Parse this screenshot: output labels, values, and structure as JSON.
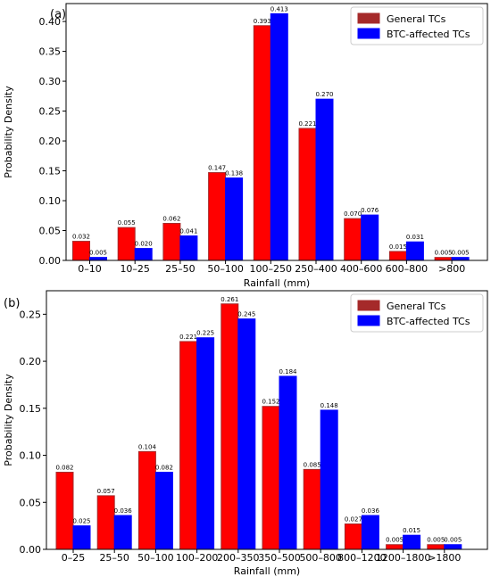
{
  "chart_data": [
    {
      "type": "bar",
      "panel_label": "(a)",
      "categories": [
        "0–10",
        "10–25",
        "25–50",
        "50–100",
        "100–250",
        "250–400",
        "400–600",
        "600–800",
        ">800"
      ],
      "series": [
        {
          "name": "General TCs",
          "values": [
            0.032,
            0.055,
            0.062,
            0.147,
            0.393,
            0.221,
            0.07,
            0.015,
            0.005
          ],
          "labels": [
            "0.032",
            "0.055",
            "0.062",
            "0.147",
            "0.393",
            "0.221",
            "0.070",
            "0.015",
            "0.005"
          ],
          "color": "#ff0000",
          "edge": "#a52a2a"
        },
        {
          "name": "BTC-affected TCs",
          "values": [
            0.005,
            0.02,
            0.041,
            0.138,
            0.413,
            0.27,
            0.076,
            0.031,
            0.005
          ],
          "labels": [
            "0.005",
            "0.020",
            "0.041",
            "0.138",
            "0.413",
            "0.270",
            "0.076",
            "0.031",
            "0.005"
          ],
          "color": "#0000ff",
          "edge": "#0000ff"
        }
      ],
      "xlabel": "Rainfall (mm)",
      "ylabel": "Probability Density",
      "ylim": [
        0,
        0.43
      ],
      "yticks": [
        0.0,
        0.05,
        0.1,
        0.15,
        0.2,
        0.25,
        0.3,
        0.35,
        0.4
      ],
      "ytick_labels": [
        "0.00",
        "0.05",
        "0.10",
        "0.15",
        "0.20",
        "0.25",
        "0.30",
        "0.35",
        "0.40"
      ],
      "legend": "top-right",
      "grid": false
    },
    {
      "type": "bar",
      "panel_label": "(b)",
      "categories": [
        "0–25",
        "25–50",
        "50–100",
        "100–200",
        "200–350",
        "350–500",
        "500–800",
        "800–1200",
        "1200–1800",
        ">1800"
      ],
      "series": [
        {
          "name": "General TCs",
          "values": [
            0.082,
            0.057,
            0.104,
            0.221,
            0.261,
            0.152,
            0.085,
            0.027,
            0.005,
            0.005
          ],
          "labels": [
            "0.082",
            "0.057",
            "0.104",
            "0.221",
            "0.261",
            "0.152",
            "0.085",
            "0.027",
            "0.005",
            "0.005"
          ],
          "color": "#ff0000",
          "edge": "#a52a2a"
        },
        {
          "name": "BTC-affected TCs",
          "values": [
            0.025,
            0.036,
            0.082,
            0.225,
            0.245,
            0.184,
            0.148,
            0.036,
            0.015,
            0.005
          ],
          "labels": [
            "0.025",
            "0.036",
            "0.082",
            "0.225",
            "0.245",
            "0.184",
            "0.148",
            "0.036",
            "0.015",
            "0.005"
          ],
          "color": "#0000ff",
          "edge": "#0000ff"
        }
      ],
      "xlabel": "Rainfall (mm)",
      "ylabel": "Probability Density",
      "ylim": [
        0,
        0.275
      ],
      "yticks": [
        0.0,
        0.05,
        0.1,
        0.15,
        0.2,
        0.25
      ],
      "ytick_labels": [
        "0.00",
        "0.05",
        "0.10",
        "0.15",
        "0.20",
        "0.25"
      ],
      "legend": "top-right",
      "grid": false
    }
  ]
}
